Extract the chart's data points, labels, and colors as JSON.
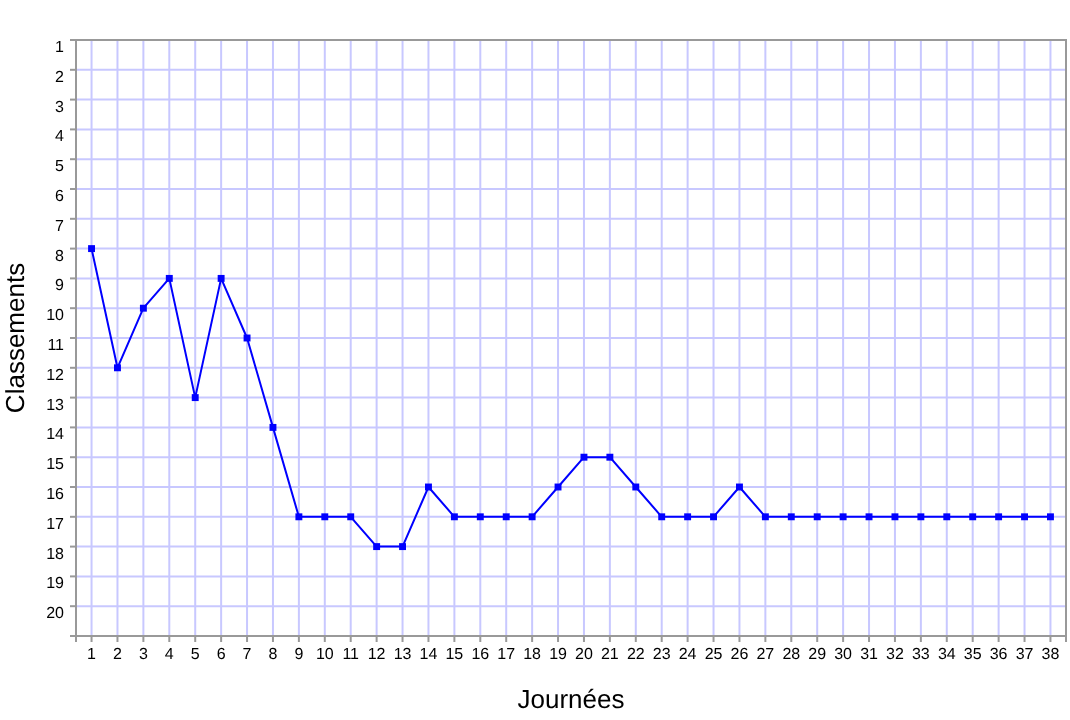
{
  "chart_data": {
    "type": "line",
    "xlabel": "Journées",
    "ylabel": "Classements",
    "x": [
      1,
      2,
      3,
      4,
      5,
      6,
      7,
      8,
      9,
      10,
      11,
      12,
      13,
      14,
      15,
      16,
      17,
      18,
      19,
      20,
      21,
      22,
      23,
      24,
      25,
      26,
      27,
      28,
      29,
      30,
      31,
      32,
      33,
      34,
      35,
      36,
      37,
      38
    ],
    "series": [
      {
        "color": "#0000ff",
        "values": [
          8,
          12,
          10,
          9,
          13,
          9,
          11,
          14,
          17,
          17,
          17,
          18,
          18,
          16,
          17,
          17,
          17,
          17,
          16,
          15,
          15,
          16,
          17,
          17,
          17,
          16,
          17,
          17,
          17,
          17,
          17,
          17,
          17,
          17,
          17,
          17,
          17,
          17
        ]
      }
    ],
    "xlim": [
      0.4,
      38.6
    ],
    "xticks": [
      1,
      2,
      3,
      4,
      5,
      6,
      7,
      8,
      9,
      10,
      11,
      12,
      13,
      14,
      15,
      16,
      17,
      18,
      19,
      20,
      21,
      22,
      23,
      24,
      25,
      26,
      27,
      28,
      29,
      30,
      31,
      32,
      33,
      34,
      35,
      36,
      37,
      38
    ],
    "ylim": [
      21,
      1
    ],
    "yticks": [
      1,
      2,
      3,
      4,
      5,
      6,
      7,
      8,
      9,
      10,
      11,
      12,
      13,
      14,
      15,
      16,
      17,
      18,
      19,
      20
    ],
    "grid": true,
    "marker": "square",
    "line_style": "solid"
  }
}
